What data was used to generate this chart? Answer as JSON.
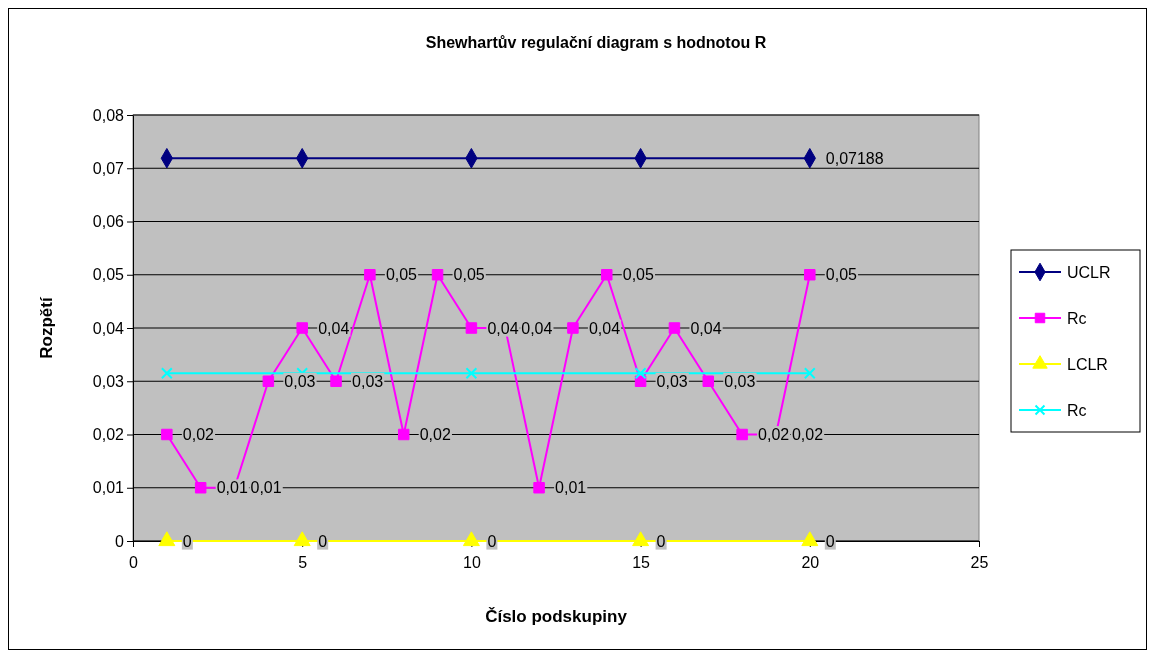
{
  "chart_data": {
    "type": "line",
    "title": "Shewhartův regulační diagram s hodnotou R",
    "xlabel": "Číslo podskupiny",
    "ylabel": "Rozpětí",
    "xlim": [
      0,
      25
    ],
    "xticks": [
      0,
      5,
      10,
      15,
      20,
      25
    ],
    "ylim": [
      0,
      0.08
    ],
    "yticks": [
      0,
      {
        "value": 0.01,
        "label": "0,01"
      },
      {
        "value": 0.02,
        "label": "0,02"
      },
      {
        "value": 0.03,
        "label": "0,03"
      },
      {
        "value": 0.04,
        "label": "0,04"
      },
      {
        "value": 0.05,
        "label": "0,05"
      },
      {
        "value": 0.06,
        "label": "0,06"
      },
      {
        "value": 0.07,
        "label": "0,07"
      },
      {
        "value": 0.08,
        "label": "0,08"
      }
    ],
    "grid": "y",
    "legend": "right",
    "series": [
      {
        "name": "UCLR",
        "color": "#000080",
        "marker": "diamond",
        "x": [
          1,
          5,
          10,
          15,
          20
        ],
        "values": [
          0.07188,
          0.07188,
          0.07188,
          0.07188,
          0.07188
        ],
        "value_labels": [
          null,
          null,
          null,
          null,
          "0,07188"
        ]
      },
      {
        "name": "Rc",
        "color": "#ff00ff",
        "marker": "square",
        "x": [
          1,
          2,
          3,
          4,
          5,
          6,
          7,
          8,
          9,
          10,
          11,
          12,
          13,
          14,
          15,
          16,
          17,
          18,
          19,
          20
        ],
        "values": [
          0.02,
          0.01,
          0.01,
          0.03,
          0.04,
          0.03,
          0.05,
          0.02,
          0.05,
          0.04,
          0.04,
          0.01,
          0.04,
          0.05,
          0.03,
          0.04,
          0.03,
          0.02,
          0.02,
          0.05
        ],
        "value_labels": [
          "0,02",
          "0,01",
          "0,01",
          "0,03",
          "0,04",
          "0,03",
          "0,05",
          "0,02",
          "0,05",
          "0,04",
          "0,04",
          "0,01",
          "0,04",
          "0,05",
          "0,03",
          "0,04",
          "0,03",
          "0,02",
          "0,02",
          "0,05"
        ]
      },
      {
        "name": "LCLR",
        "color": "#ffff00",
        "marker": "triangle",
        "x": [
          1,
          5,
          10,
          15,
          20
        ],
        "values": [
          0,
          0,
          0,
          0,
          0
        ],
        "value_labels": [
          "0",
          "0",
          "0",
          "0",
          "0"
        ]
      },
      {
        "name": "Rc",
        "color": "#00ffff",
        "marker": "cross",
        "x": [
          1,
          5,
          10,
          15,
          20
        ],
        "values": [
          0.0315,
          0.0315,
          0.0315,
          0.0315,
          0.0315
        ]
      }
    ]
  }
}
